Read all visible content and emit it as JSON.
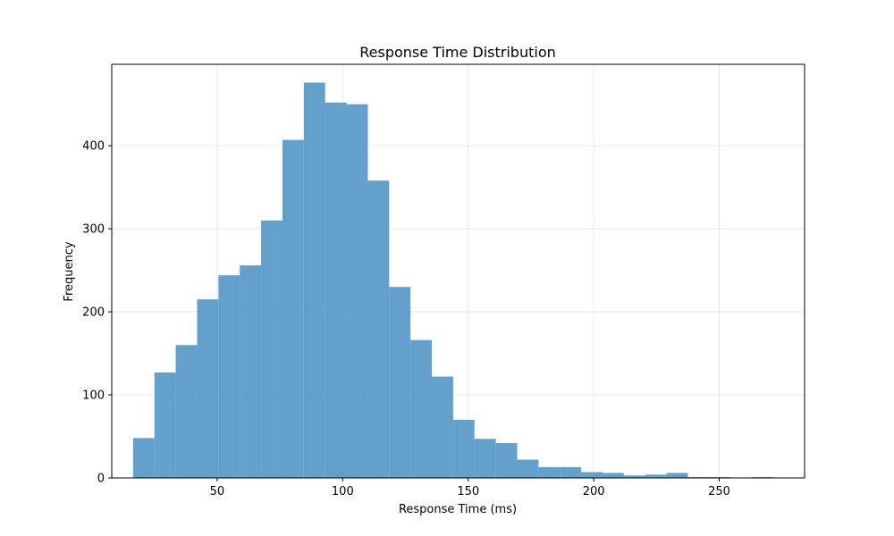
{
  "chart_data": {
    "type": "bar",
    "title": "Response Time Distribution",
    "xlabel": "Response Time (ms)",
    "ylabel": "Frequency",
    "bin_start": 16.5,
    "bin_width": 8.5,
    "values": [
      48,
      127,
      160,
      215,
      244,
      256,
      310,
      407,
      476,
      452,
      450,
      358,
      230,
      166,
      122,
      70,
      47,
      42,
      22,
      13,
      13,
      7,
      6,
      3,
      4,
      6,
      1,
      1,
      0,
      1
    ],
    "xlim": [
      8,
      284
    ],
    "ylim": [
      0,
      498
    ],
    "xticks": [
      50,
      100,
      150,
      200,
      250
    ],
    "yticks": [
      0,
      100,
      200,
      300,
      400
    ],
    "bar_color": "#5b9bc9",
    "grid": true
  }
}
